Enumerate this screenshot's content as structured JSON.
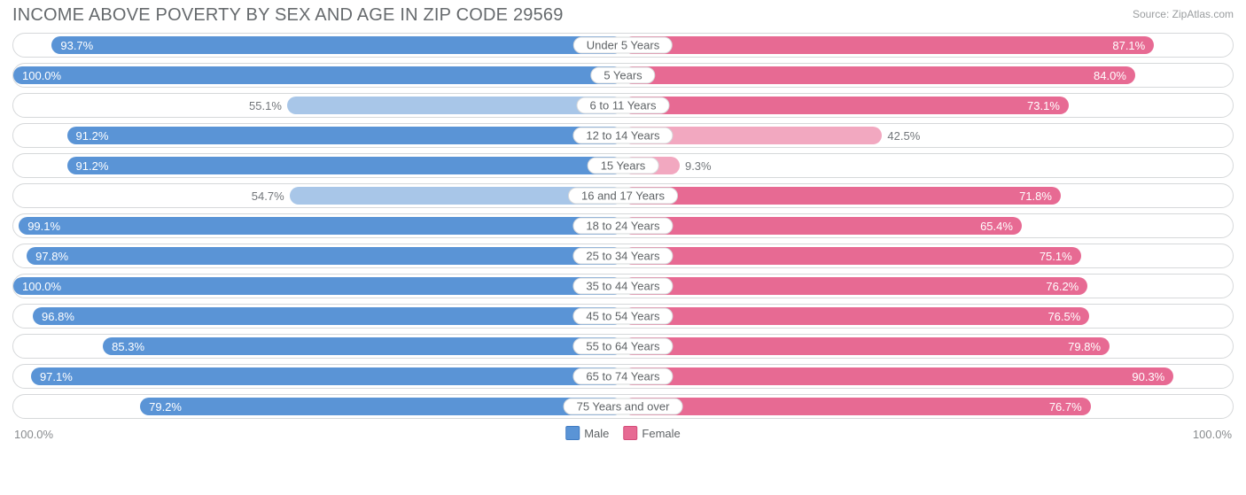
{
  "title": "INCOME ABOVE POVERTY BY SEX AND AGE IN ZIP CODE 29569",
  "source": "Source: ZipAtlas.com",
  "axis_left": "100.0%",
  "axis_right": "100.0%",
  "legend": {
    "male": "Male",
    "female": "Female"
  },
  "colors": {
    "male_fill": "#5a94d6",
    "male_light": "#a8c6e8",
    "female_fill": "#e76a93",
    "female_light": "#f2a8c0",
    "row_border": "#d6d8da",
    "swatch_male_border": "#3f7bc2",
    "swatch_female_border": "#d44d7a"
  },
  "chart": {
    "type": "diverging-bar",
    "xlim": [
      0,
      100
    ],
    "rows": [
      {
        "label": "Under 5 Years",
        "male": 93.7,
        "male_txt": "93.7%",
        "female": 87.1,
        "female_txt": "87.1%"
      },
      {
        "label": "5 Years",
        "male": 100.0,
        "male_txt": "100.0%",
        "female": 84.0,
        "female_txt": "84.0%"
      },
      {
        "label": "6 to 11 Years",
        "male": 55.1,
        "male_txt": "55.1%",
        "female": 73.1,
        "female_txt": "73.1%",
        "male_light": true
      },
      {
        "label": "12 to 14 Years",
        "male": 91.2,
        "male_txt": "91.2%",
        "female": 42.5,
        "female_txt": "42.5%",
        "female_light": true
      },
      {
        "label": "15 Years",
        "male": 91.2,
        "male_txt": "91.2%",
        "female": 9.3,
        "female_txt": "9.3%",
        "female_light": true
      },
      {
        "label": "16 and 17 Years",
        "male": 54.7,
        "male_txt": "54.7%",
        "female": 71.8,
        "female_txt": "71.8%",
        "male_light": true
      },
      {
        "label": "18 to 24 Years",
        "male": 99.1,
        "male_txt": "99.1%",
        "female": 65.4,
        "female_txt": "65.4%"
      },
      {
        "label": "25 to 34 Years",
        "male": 97.8,
        "male_txt": "97.8%",
        "female": 75.1,
        "female_txt": "75.1%"
      },
      {
        "label": "35 to 44 Years",
        "male": 100.0,
        "male_txt": "100.0%",
        "female": 76.2,
        "female_txt": "76.2%"
      },
      {
        "label": "45 to 54 Years",
        "male": 96.8,
        "male_txt": "96.8%",
        "female": 76.5,
        "female_txt": "76.5%"
      },
      {
        "label": "55 to 64 Years",
        "male": 85.3,
        "male_txt": "85.3%",
        "female": 79.8,
        "female_txt": "79.8%"
      },
      {
        "label": "65 to 74 Years",
        "male": 97.1,
        "male_txt": "97.1%",
        "female": 90.3,
        "female_txt": "90.3%"
      },
      {
        "label": "75 Years and over",
        "male": 79.2,
        "male_txt": "79.2%",
        "female": 76.7,
        "female_txt": "76.7%"
      }
    ]
  }
}
